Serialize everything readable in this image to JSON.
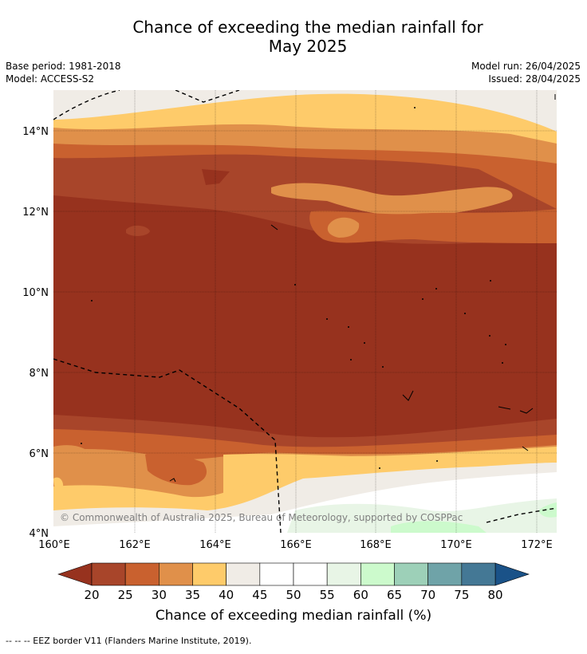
{
  "title": {
    "line1": "Chance of exceeding the median rainfall for",
    "line2": "May 2025"
  },
  "meta": {
    "base_period": "Base period: 1981-2018",
    "model": "Model: ACCESS-S2",
    "model_run": "Model run: 26/04/2025",
    "issued": "Issued: 28/04/2025"
  },
  "map": {
    "lat_labels": [
      "14°N",
      "12°N",
      "10°N",
      "8°N",
      "6°N",
      "4°N"
    ],
    "lon_labels": [
      "160°E",
      "162°E",
      "164°E",
      "166°E",
      "168°E",
      "170°E",
      "172°E"
    ],
    "copyright": "© Commonwealth of Australia 2025, Bureau of Meteorology, supported by COSPPac"
  },
  "colorbar": {
    "ticks": [
      "20",
      "25",
      "30",
      "35",
      "40",
      "45",
      "50",
      "55",
      "60",
      "65",
      "70",
      "75",
      "80"
    ],
    "colors": [
      "#a8452a",
      "#c9612f",
      "#e0904a",
      "#fecb6a",
      "#f0ece6",
      "#ffffff",
      "#ffffff",
      "#e8f5e6",
      "#ccfacc",
      "#9dd0b8",
      "#6fa3a8",
      "#447895"
    ],
    "low_color": "#97321e",
    "high_color": "#1a5288",
    "label": "Chance of exceeding median rainfall (%)"
  },
  "footnote": "--  --  -- EEZ border V11 (Flanders Marine Institute, 2019)."
}
